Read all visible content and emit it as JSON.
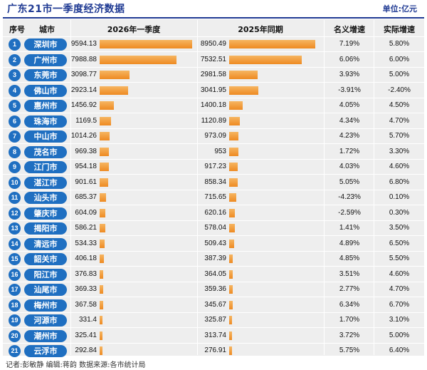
{
  "title": "广东21市一季度经济数据",
  "unit": "单位:亿元",
  "footer": "记者:彭敏静  编辑:蒋韵  数据来源:各市统计局",
  "headers": {
    "rank": "序号",
    "city": "城市",
    "col2026": "2026年一季度",
    "col2025": "2025年同期",
    "nominal": "名义增速",
    "real": "实际增速"
  },
  "chart_data": {
    "type": "table",
    "categories": [
      "深圳市",
      "广州市",
      "东莞市",
      "佛山市",
      "惠州市",
      "珠海市",
      "中山市",
      "茂名市",
      "江门市",
      "湛江市",
      "汕头市",
      "肇庆市",
      "揭阳市",
      "清远市",
      "韶关市",
      "阳江市",
      "汕尾市",
      "梅州市",
      "河源市",
      "潮州市",
      "云浮市"
    ],
    "series": [
      {
        "name": "2026年一季度",
        "values": [
          "9594.13",
          "7988.88",
          "3098.77",
          "2923.14",
          "1456.92",
          "1169.5",
          "1014.26",
          "969.38",
          "954.18",
          "901.61",
          "685.37",
          "604.09",
          "586.21",
          "534.33",
          "406.18",
          "376.83",
          "369.33",
          "367.58",
          "331.4",
          "325.41",
          "292.84"
        ]
      },
      {
        "name": "2025年同期",
        "values": [
          "8950.49",
          "7532.51",
          "2981.58",
          "3041.95",
          "1400.18",
          "1120.89",
          "973.09",
          "953",
          "917.23",
          "858.34",
          "715.65",
          "620.16",
          "578.04",
          "509.43",
          "387.39",
          "364.05",
          "359.36",
          "345.67",
          "325.87",
          "313.74",
          "276.91"
        ]
      },
      {
        "name": "名义增速",
        "values": [
          "7.19%",
          "6.06%",
          "3.93%",
          "-3.91%",
          "4.05%",
          "4.34%",
          "4.23%",
          "1.72%",
          "4.03%",
          "5.05%",
          "-4.23%",
          "-2.59%",
          "1.41%",
          "4.89%",
          "4.85%",
          "3.51%",
          "2.77%",
          "6.34%",
          "1.70%",
          "3.72%",
          "5.75%"
        ]
      },
      {
        "name": "实际增速",
        "values": [
          "5.80%",
          "6.00%",
          "5.00%",
          "-2.40%",
          "4.50%",
          "4.70%",
          "5.70%",
          "3.30%",
          "4.60%",
          "6.80%",
          "0.10%",
          "0.30%",
          "3.50%",
          "6.50%",
          "5.50%",
          "4.60%",
          "4.70%",
          "6.70%",
          "3.10%",
          "5.00%",
          "6.40%"
        ]
      }
    ],
    "ranks": [
      "1",
      "2",
      "3",
      "4",
      "5",
      "6",
      "7",
      "8",
      "9",
      "10",
      "11",
      "12",
      "13",
      "14",
      "15",
      "16",
      "17",
      "18",
      "19",
      "20",
      "21"
    ],
    "bar_max": 9594.13
  }
}
